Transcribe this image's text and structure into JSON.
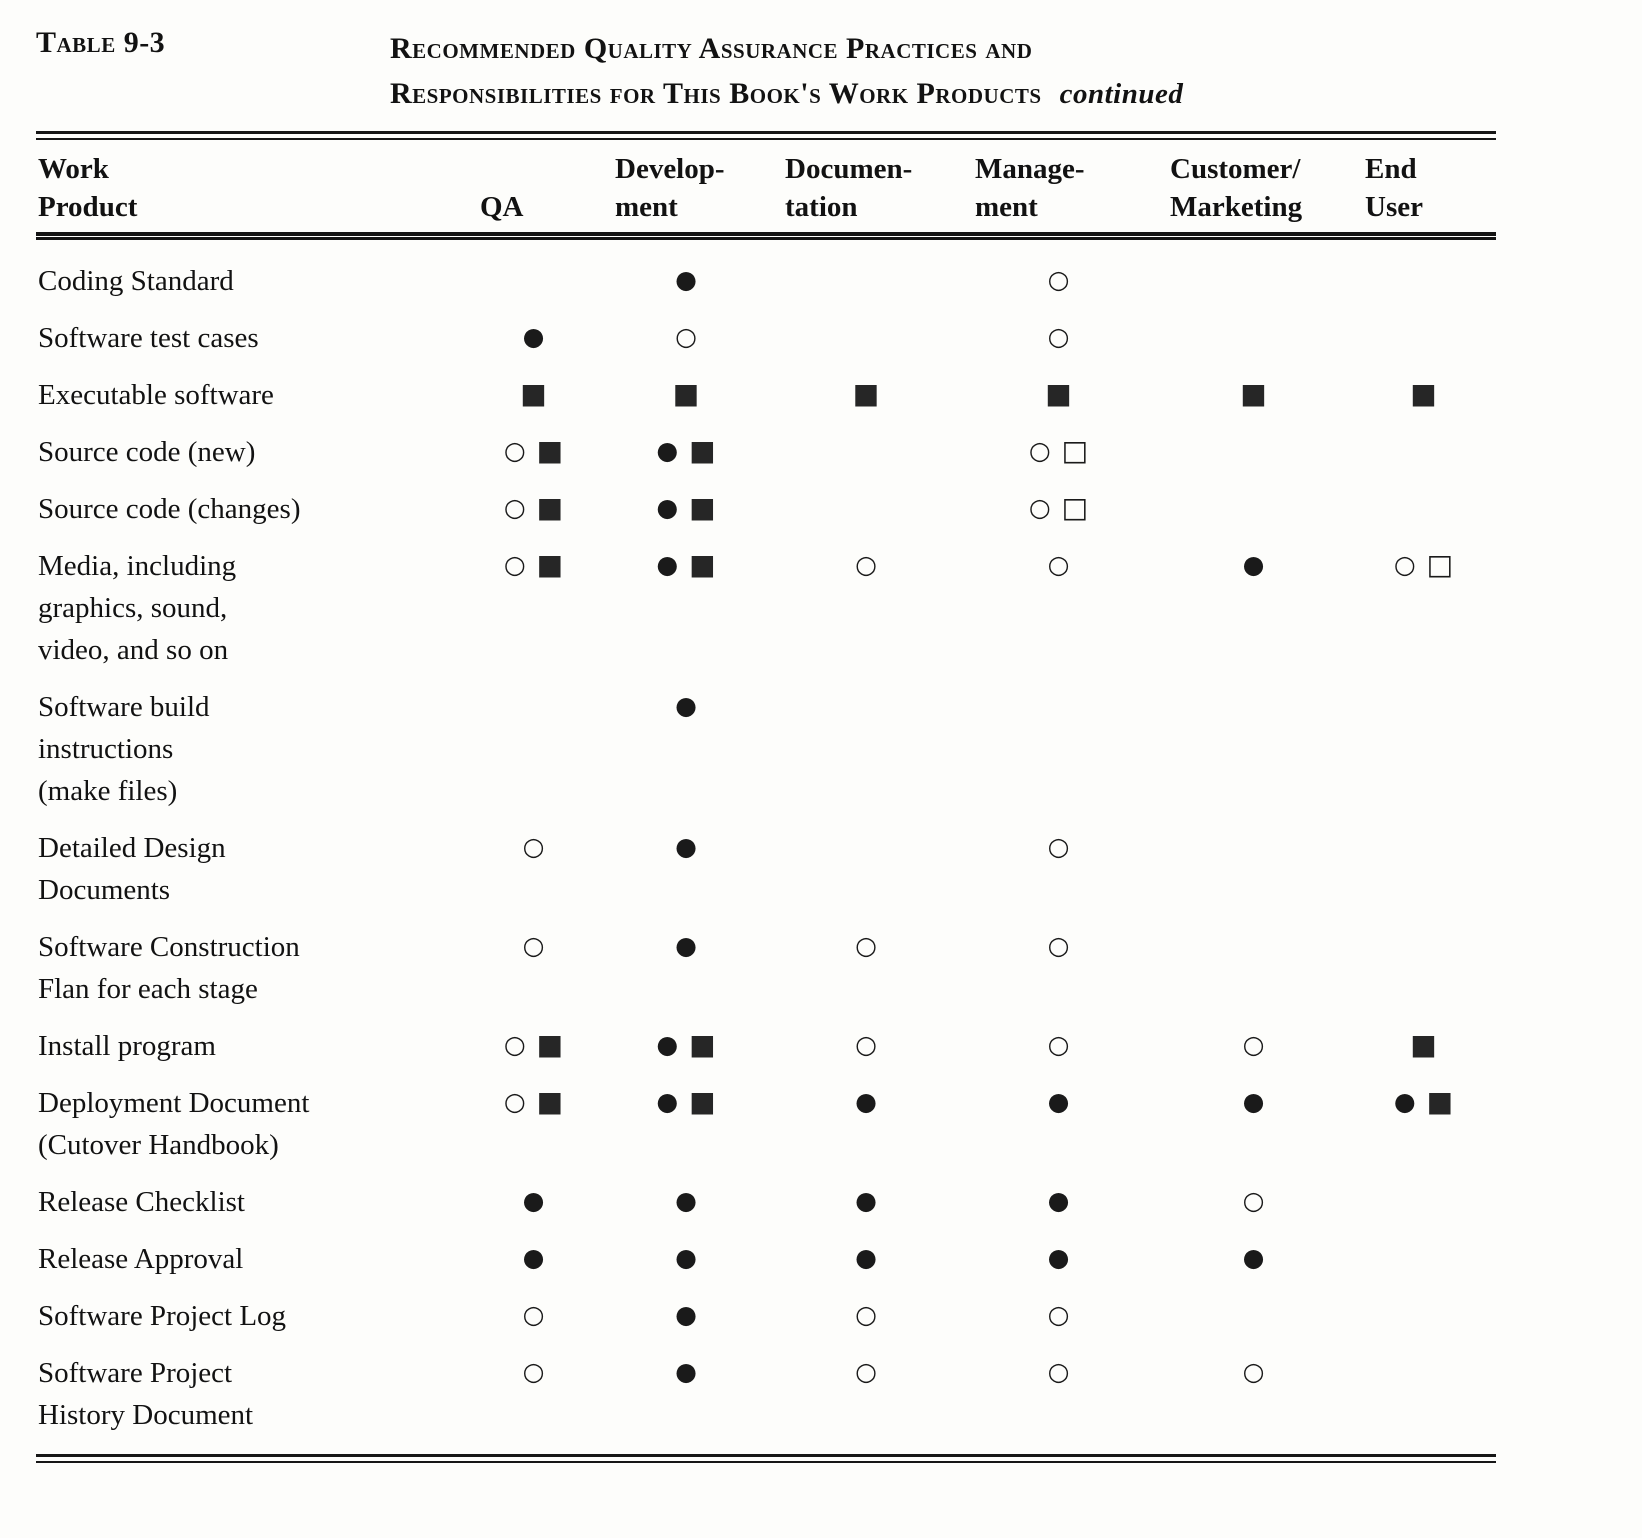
{
  "page": {
    "table_label": "Table 9-3",
    "title_line1": "Recommended Quality Assurance Practices and",
    "title_line2": "Responsibilities for This Book's Work Products",
    "title_continued": "continued"
  },
  "columns": [
    {
      "key": "work-product",
      "label_lines": [
        "Work",
        "Product"
      ]
    },
    {
      "key": "qa",
      "label_lines": [
        "",
        "QA"
      ]
    },
    {
      "key": "development",
      "label_lines": [
        "Develop-",
        "ment"
      ]
    },
    {
      "key": "documentation",
      "label_lines": [
        "Documen-",
        "tation"
      ]
    },
    {
      "key": "management",
      "label_lines": [
        "Manage-",
        "ment"
      ]
    },
    {
      "key": "customer-marketing",
      "label_lines": [
        "Customer/",
        "Marketing"
      ]
    },
    {
      "key": "end-user",
      "label_lines": [
        "End",
        "User"
      ]
    }
  ],
  "symbols": {
    "fc": "●",
    "oc": "○",
    "fs": "■",
    "os": "□"
  },
  "symbol_names": {
    "fc": "filled-circle-icon",
    "oc": "open-circle-icon",
    "fs": "filled-square-icon",
    "os": "open-square-icon"
  },
  "rows": [
    {
      "name_lines": [
        "Coding Standard"
      ],
      "cells": [
        [],
        [
          "fc"
        ],
        [],
        [
          "oc"
        ],
        [],
        []
      ]
    },
    {
      "name_lines": [
        "Software test cases"
      ],
      "cells": [
        [
          "fc"
        ],
        [
          "oc"
        ],
        [],
        [
          "oc"
        ],
        [],
        []
      ]
    },
    {
      "name_lines": [
        "Executable software"
      ],
      "cells": [
        [
          "fs"
        ],
        [
          "fs"
        ],
        [
          "fs"
        ],
        [
          "fs"
        ],
        [
          "fs"
        ],
        [
          "fs"
        ]
      ]
    },
    {
      "name_lines": [
        "Source code (new)"
      ],
      "cells": [
        [
          "oc",
          "fs"
        ],
        [
          "fc",
          "fs"
        ],
        [],
        [
          "oc",
          "os"
        ],
        [],
        []
      ]
    },
    {
      "name_lines": [
        "Source code (changes)"
      ],
      "cells": [
        [
          "oc",
          "fs"
        ],
        [
          "fc",
          "fs"
        ],
        [],
        [
          "oc",
          "os"
        ],
        [],
        []
      ]
    },
    {
      "name_lines": [
        "Media, including",
        "graphics, sound,",
        "video, and so on"
      ],
      "cells": [
        [
          "oc",
          "fs"
        ],
        [
          "fc",
          "fs"
        ],
        [
          "oc"
        ],
        [
          "oc"
        ],
        [
          "fc"
        ],
        [
          "oc",
          "os"
        ]
      ]
    },
    {
      "name_lines": [
        "Software  build",
        "instructions",
        "(make files)"
      ],
      "cells": [
        [],
        [
          "fc"
        ],
        [],
        [],
        [],
        []
      ]
    },
    {
      "name_lines": [
        "Detailed Design",
        "Documents"
      ],
      "cells": [
        [
          "oc"
        ],
        [
          "fc"
        ],
        [],
        [
          "oc"
        ],
        [],
        []
      ]
    },
    {
      "name_lines": [
        "Software  Construction",
        "Flan for each stage"
      ],
      "cells": [
        [
          "oc"
        ],
        [
          "fc"
        ],
        [
          "oc"
        ],
        [
          "oc"
        ],
        [],
        []
      ]
    },
    {
      "name_lines": [
        "Install program"
      ],
      "cells": [
        [
          "oc",
          "fs"
        ],
        [
          "fc",
          "fs"
        ],
        [
          "oc"
        ],
        [
          "oc"
        ],
        [
          "oc"
        ],
        [
          "fs"
        ]
      ]
    },
    {
      "name_lines": [
        "Deployment Document",
        "(Cutover  Handbook)"
      ],
      "cells": [
        [
          "oc",
          "fs"
        ],
        [
          "fc",
          "fs"
        ],
        [
          "fc"
        ],
        [
          "fc"
        ],
        [
          "fc"
        ],
        [
          "fc",
          "fs"
        ]
      ]
    },
    {
      "name_lines": [
        "Release  Checklist"
      ],
      "cells": [
        [
          "fc"
        ],
        [
          "fc"
        ],
        [
          "fc"
        ],
        [
          "fc"
        ],
        [
          "oc"
        ],
        []
      ]
    },
    {
      "name_lines": [
        "Release  Approval"
      ],
      "cells": [
        [
          "fc"
        ],
        [
          "fc"
        ],
        [
          "fc"
        ],
        [
          "fc"
        ],
        [
          "fc"
        ],
        []
      ]
    },
    {
      "name_lines": [
        "Software Project Log"
      ],
      "cells": [
        [
          "oc"
        ],
        [
          "fc"
        ],
        [
          "oc"
        ],
        [
          "oc"
        ],
        [],
        []
      ]
    },
    {
      "name_lines": [
        "Software Project",
        "History Document"
      ],
      "cells": [
        [
          "oc"
        ],
        [
          "fc"
        ],
        [
          "oc"
        ],
        [
          "oc"
        ],
        [
          "oc"
        ],
        []
      ]
    }
  ]
}
